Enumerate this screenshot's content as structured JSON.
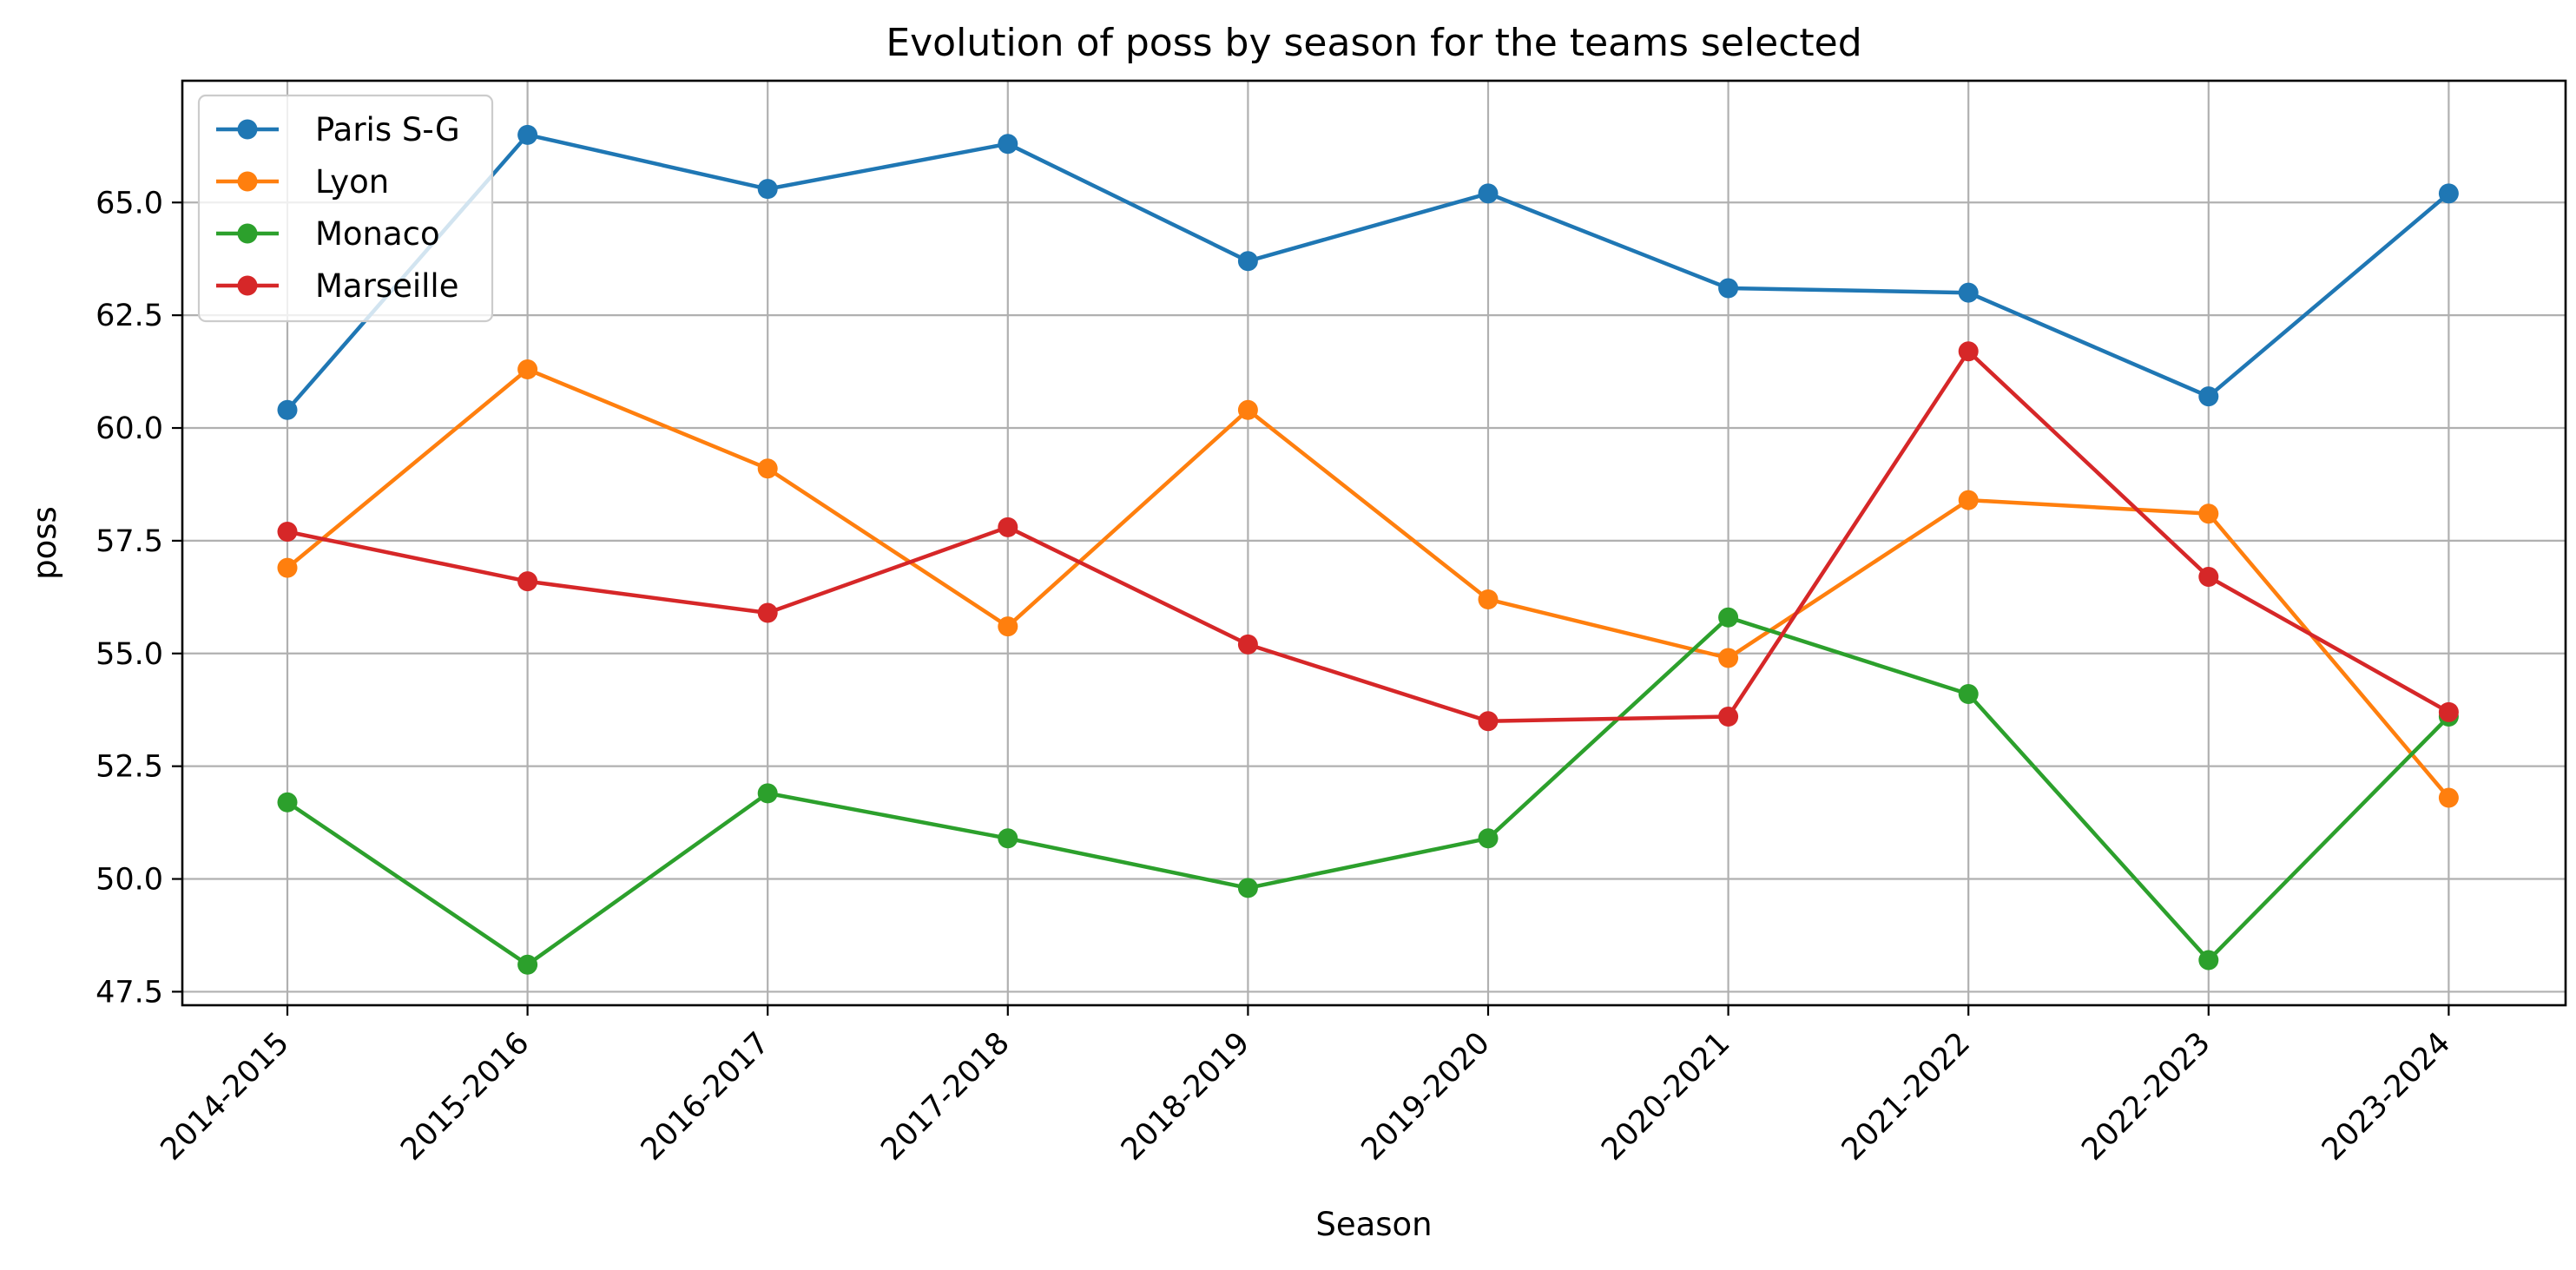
{
  "chart_data": {
    "type": "line",
    "title": "Evolution of poss by season for the teams selected",
    "xlabel": "Season",
    "ylabel": "poss",
    "categories": [
      "2014-2015",
      "2015-2016",
      "2016-2017",
      "2017-2018",
      "2018-2019",
      "2019-2020",
      "2020-2021",
      "2021-2022",
      "2022-2023",
      "2023-2024"
    ],
    "ylim": [
      47.2,
      67.7
    ],
    "yticks": [
      47.5,
      50.0,
      52.5,
      55.0,
      57.5,
      60.0,
      62.5,
      65.0
    ],
    "ytick_labels": [
      "47.5",
      "50.0",
      "52.5",
      "55.0",
      "57.5",
      "60.0",
      "62.5",
      "65.0"
    ],
    "grid": true,
    "legend_position": "upper-left",
    "series": [
      {
        "name": "Paris S-G",
        "color": "#1f77b4",
        "values": [
          60.4,
          66.5,
          65.3,
          66.3,
          63.7,
          65.2,
          63.1,
          63.0,
          60.7,
          65.2
        ]
      },
      {
        "name": "Lyon",
        "color": "#ff7f0e",
        "values": [
          56.9,
          61.3,
          59.1,
          55.6,
          60.4,
          56.2,
          54.9,
          58.4,
          58.1,
          51.8
        ]
      },
      {
        "name": "Monaco",
        "color": "#2ca02c",
        "values": [
          51.7,
          48.1,
          51.9,
          50.9,
          49.8,
          50.9,
          55.8,
          54.1,
          48.2,
          53.6
        ]
      },
      {
        "name": "Marseille",
        "color": "#d62728",
        "values": [
          57.7,
          56.6,
          55.9,
          57.8,
          55.2,
          53.5,
          53.6,
          61.7,
          56.7,
          53.7
        ]
      }
    ]
  }
}
